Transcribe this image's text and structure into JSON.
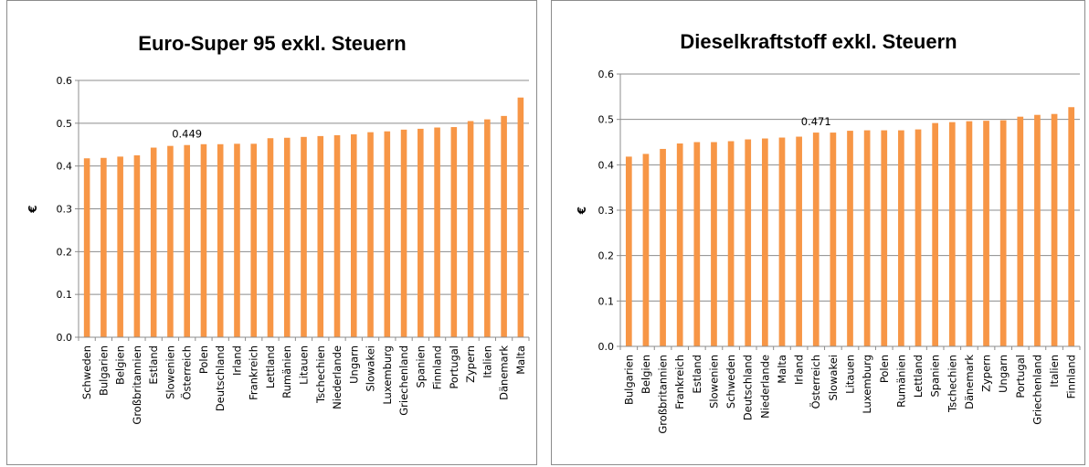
{
  "chart_data": [
    {
      "type": "bar",
      "title": "Euro-Super 95 exkl. Steuern",
      "ylabel": "€",
      "xlabel": "",
      "ylim": [
        0,
        0.6
      ],
      "yticks": [
        "0.0",
        "0.1",
        "0.2",
        "0.3",
        "0.4",
        "0.5",
        "0.6"
      ],
      "grid": true,
      "bar_color": "#f79646",
      "categories": [
        "Schweden",
        "Bulgarien",
        "Belgien",
        "Großbritannien",
        "Estland",
        "Slowenien",
        "Österreich",
        "Polen",
        "Deutschland",
        "Irland",
        "Frankreich",
        "Lettland",
        "Rumänien",
        "Litauen",
        "Tschechien",
        "Niederlande",
        "Ungarn",
        "Slowakei",
        "Luxemburg",
        "Griechenland",
        "Spanien",
        "Finnland",
        "Portugal",
        "Zypern",
        "Italien",
        "Dänemark",
        "Malta"
      ],
      "values": [
        0.418,
        0.419,
        0.422,
        0.425,
        0.443,
        0.447,
        0.449,
        0.451,
        0.451,
        0.452,
        0.452,
        0.465,
        0.466,
        0.468,
        0.47,
        0.472,
        0.474,
        0.479,
        0.481,
        0.485,
        0.487,
        0.49,
        0.491,
        0.505,
        0.509,
        0.517,
        0.56
      ],
      "annotations": [
        {
          "category": "Österreich",
          "label": "0.449"
        }
      ]
    },
    {
      "type": "bar",
      "title": "Dieselkraftstoff exkl. Steuern",
      "ylabel": "€",
      "xlabel": "",
      "ylim": [
        0,
        0.6
      ],
      "yticks": [
        "0.0",
        "0.1",
        "0.2",
        "0.3",
        "0.4",
        "0.5",
        "0.6"
      ],
      "grid": true,
      "bar_color": "#f79646",
      "categories": [
        "Bulgarien",
        "Belgien",
        "Großbritannien",
        "Frankreich",
        "Estland",
        "Slowenien",
        "Schweden",
        "Deutschland",
        "Niederlande",
        "Malta",
        "Irland",
        "Österreich",
        "Slowakei",
        "Litauen",
        "Luxemburg",
        "Polen",
        "Rumänien",
        "Lettland",
        "Spanien",
        "Tschechien",
        "Dänemark",
        "Zypern",
        "Ungarn",
        "Portugal",
        "Griechenland",
        "Italien",
        "Finnland"
      ],
      "values": [
        0.418,
        0.424,
        0.435,
        0.447,
        0.45,
        0.45,
        0.452,
        0.456,
        0.458,
        0.46,
        0.462,
        0.471,
        0.471,
        0.475,
        0.476,
        0.476,
        0.476,
        0.478,
        0.492,
        0.494,
        0.496,
        0.497,
        0.498,
        0.506,
        0.51,
        0.512,
        0.527
      ],
      "annotations": [
        {
          "category": "Österreich",
          "label": "0.471"
        }
      ]
    }
  ]
}
